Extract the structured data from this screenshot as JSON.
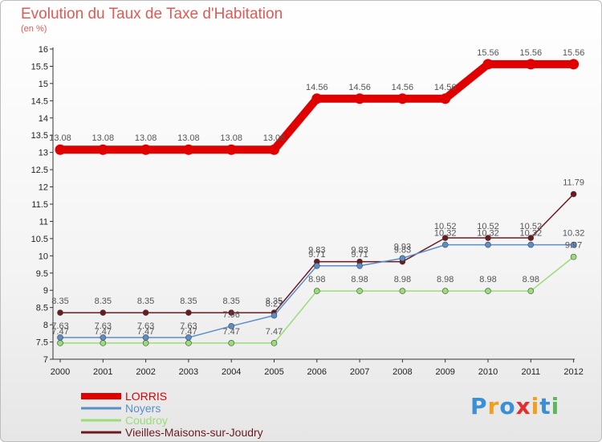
{
  "logo": {
    "text": "Proxiti"
  },
  "chart_data": {
    "type": "line",
    "title": "Evolution du Taux de Taxe d'Habitation",
    "subtitle": "(en %)",
    "x": [
      "2000",
      "2001",
      "2002",
      "2003",
      "2004",
      "2005",
      "2006",
      "2007",
      "2008",
      "2009",
      "2010",
      "2011",
      "2012"
    ],
    "ylim": [
      7,
      16
    ],
    "yticks": [
      "7",
      "7.5",
      "8",
      "8.5",
      "9",
      "9.5",
      "10",
      "10.5",
      "11",
      "11.5",
      "12",
      "12.5",
      "13",
      "13.5",
      "14",
      "14.5",
      "15",
      "15.5",
      "16"
    ],
    "grid": false,
    "legend_position": "bottom-left",
    "series": [
      {
        "name": "LORRIS",
        "color": "#e00000",
        "values": [
          13.08,
          13.08,
          13.08,
          13.08,
          13.08,
          13.08,
          14.56,
          14.56,
          14.56,
          14.56,
          15.56,
          15.56,
          15.56
        ],
        "labels": [
          "13.08",
          "13.08",
          "13.08",
          "13.08",
          "13.08",
          "13.08",
          "14.56",
          "14.56",
          "14.56",
          "14.56",
          "15.56",
          "15.56",
          "15.56"
        ]
      },
      {
        "name": "Noyers",
        "color": "#5b8ec9",
        "values": [
          7.63,
          7.63,
          7.63,
          7.63,
          7.96,
          8.27,
          9.71,
          9.71,
          9.93,
          10.32,
          10.32,
          10.32,
          10.32
        ],
        "labels": [
          "7.63",
          "7.63",
          "7.63",
          "7.63",
          "7.96",
          "8.27",
          "9.71",
          "9.71",
          "9.93",
          "10.32",
          "10.32",
          "10.32",
          "10.32"
        ]
      },
      {
        "name": "Coudroy",
        "color": "#99dd77",
        "values": [
          7.47,
          7.47,
          7.47,
          7.47,
          7.47,
          7.47,
          8.98,
          8.98,
          8.98,
          8.98,
          8.98,
          8.98,
          9.97
        ],
        "labels": [
          "7.47",
          "7.47",
          "7.47",
          "7.47",
          "7.47",
          "7.47",
          "8.98",
          "8.98",
          "8.98",
          "8.98",
          "8.98",
          "8.98",
          "9.97"
        ]
      },
      {
        "name": "Vieilles-Maisons-sur-Joudry",
        "color": "#6b1a22",
        "values": [
          8.35,
          8.35,
          8.35,
          8.35,
          8.35,
          8.35,
          9.83,
          9.83,
          9.83,
          10.52,
          10.52,
          10.52,
          11.79
        ],
        "labels": [
          "8.35",
          "8.35",
          "8.35",
          "8.35",
          "8.35",
          "8.35",
          "9.83",
          "9.83",
          "9.83",
          "10.52",
          "10.52",
          "10.52",
          "11.79"
        ]
      }
    ]
  }
}
